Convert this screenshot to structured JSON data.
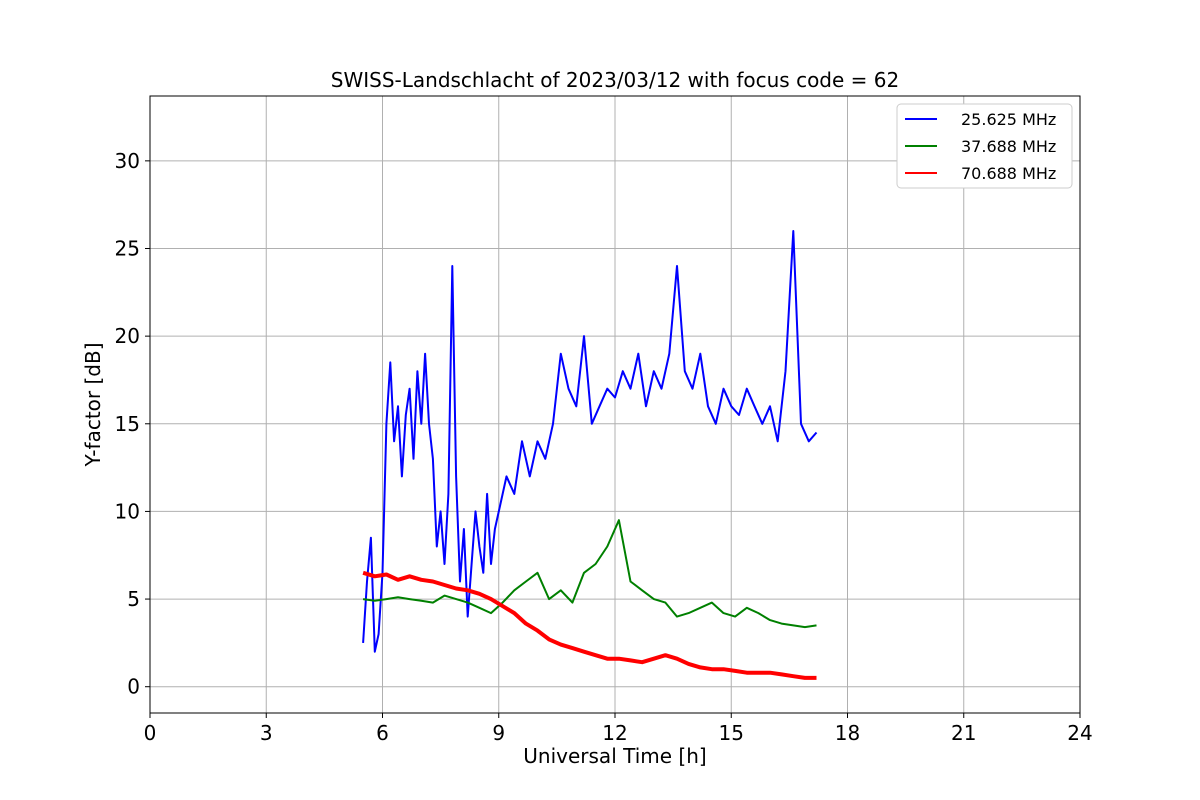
{
  "chart_data": {
    "type": "line",
    "title": "SWISS-Landschlacht of 2023/03/12 with focus code = 62",
    "xlabel": "Universal Time [h]",
    "ylabel": "Y-factor [dB]",
    "xlim": [
      0,
      24
    ],
    "ylim": [
      -1.5,
      33.7
    ],
    "xticks": [
      0,
      3,
      6,
      9,
      12,
      15,
      18,
      21,
      24
    ],
    "yticks": [
      0,
      5,
      10,
      15,
      20,
      25,
      30
    ],
    "grid": true,
    "legend_position": "top-right",
    "series": [
      {
        "name": "25.625 MHz",
        "color": "#0000ff",
        "x": [
          5.5,
          5.6,
          5.7,
          5.8,
          5.9,
          6.0,
          6.1,
          6.2,
          6.3,
          6.4,
          6.5,
          6.6,
          6.7,
          6.8,
          6.9,
          7.0,
          7.1,
          7.2,
          7.3,
          7.4,
          7.5,
          7.6,
          7.7,
          7.8,
          7.9,
          8.0,
          8.1,
          8.2,
          8.3,
          8.4,
          8.5,
          8.6,
          8.7,
          8.8,
          8.9,
          9.0,
          9.2,
          9.4,
          9.6,
          9.8,
          10.0,
          10.2,
          10.4,
          10.6,
          10.8,
          11.0,
          11.2,
          11.4,
          11.6,
          11.8,
          12.0,
          12.2,
          12.4,
          12.6,
          12.8,
          13.0,
          13.2,
          13.4,
          13.6,
          13.8,
          14.0,
          14.2,
          14.4,
          14.6,
          14.8,
          15.0,
          15.2,
          15.4,
          15.6,
          15.8,
          16.0,
          16.2,
          16.4,
          16.6,
          16.8,
          17.0,
          17.2
        ],
        "y": [
          2.5,
          6.0,
          8.5,
          2.0,
          3.0,
          6.5,
          15.0,
          18.5,
          14.0,
          16.0,
          12.0,
          15.5,
          17.0,
          13.0,
          18.0,
          15.0,
          19.0,
          15.0,
          13.0,
          8.0,
          10.0,
          7.0,
          11.0,
          24.0,
          12.0,
          6.0,
          9.0,
          4.0,
          7.0,
          10.0,
          8.0,
          6.5,
          11.0,
          7.0,
          9.0,
          10.0,
          12.0,
          11.0,
          14.0,
          12.0,
          14.0,
          13.0,
          15.0,
          19.0,
          17.0,
          16.0,
          20.0,
          15.0,
          16.0,
          17.0,
          16.5,
          18.0,
          17.0,
          19.0,
          16.0,
          18.0,
          17.0,
          19.0,
          24.0,
          18.0,
          17.0,
          19.0,
          16.0,
          15.0,
          17.0,
          16.0,
          15.5,
          17.0,
          16.0,
          15.0,
          16.0,
          14.0,
          18.0,
          26.0,
          15.0,
          14.0,
          14.5
        ]
      },
      {
        "name": "37.688 MHz",
        "color": "#008000",
        "x": [
          5.5,
          5.8,
          6.1,
          6.4,
          6.7,
          7.0,
          7.3,
          7.6,
          7.9,
          8.2,
          8.5,
          8.8,
          9.1,
          9.4,
          9.7,
          10.0,
          10.3,
          10.6,
          10.9,
          11.2,
          11.5,
          11.8,
          12.1,
          12.4,
          12.7,
          13.0,
          13.3,
          13.6,
          13.9,
          14.2,
          14.5,
          14.8,
          15.1,
          15.4,
          15.7,
          16.0,
          16.3,
          16.6,
          16.9,
          17.2
        ],
        "y": [
          5.0,
          4.9,
          5.0,
          5.1,
          5.0,
          4.9,
          4.8,
          5.2,
          5.0,
          4.8,
          4.5,
          4.2,
          4.8,
          5.5,
          6.0,
          6.5,
          5.0,
          5.5,
          4.8,
          6.5,
          7.0,
          8.0,
          9.5,
          6.0,
          5.5,
          5.0,
          4.8,
          4.0,
          4.2,
          4.5,
          4.8,
          4.2,
          4.0,
          4.5,
          4.2,
          3.8,
          3.6,
          3.5,
          3.4,
          3.5
        ]
      },
      {
        "name": "70.688 MHz",
        "color": "#ff0000",
        "x": [
          5.5,
          5.8,
          6.1,
          6.4,
          6.7,
          7.0,
          7.3,
          7.6,
          7.9,
          8.2,
          8.5,
          8.8,
          9.1,
          9.4,
          9.7,
          10.0,
          10.3,
          10.6,
          10.9,
          11.2,
          11.5,
          11.8,
          12.1,
          12.4,
          12.7,
          13.0,
          13.3,
          13.6,
          13.9,
          14.2,
          14.5,
          14.8,
          15.1,
          15.4,
          15.7,
          16.0,
          16.3,
          16.6,
          16.9,
          17.2
        ],
        "y": [
          6.5,
          6.3,
          6.4,
          6.1,
          6.3,
          6.1,
          6.0,
          5.8,
          5.6,
          5.5,
          5.3,
          5.0,
          4.6,
          4.2,
          3.6,
          3.2,
          2.7,
          2.4,
          2.2,
          2.0,
          1.8,
          1.6,
          1.6,
          1.5,
          1.4,
          1.6,
          1.8,
          1.6,
          1.3,
          1.1,
          1.0,
          1.0,
          0.9,
          0.8,
          0.8,
          0.8,
          0.7,
          0.6,
          0.5,
          0.5
        ]
      }
    ]
  }
}
